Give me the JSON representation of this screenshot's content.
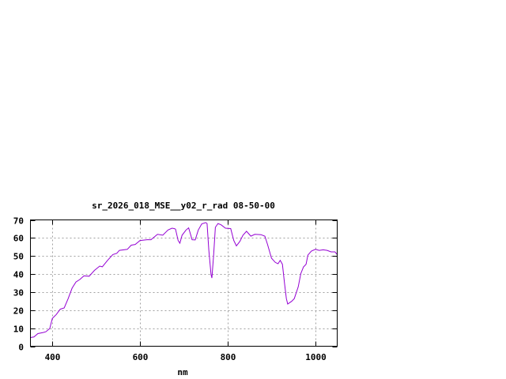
{
  "chart_data": {
    "type": "line",
    "title": "sr_2026_018_MSE__y02_r_rad 08-50-00",
    "xlabel": "nm",
    "ylabel": "",
    "xlim": [
      350,
      1050
    ],
    "ylim": [
      0,
      70
    ],
    "xticks": [
      400,
      600,
      800,
      1000
    ],
    "yticks": [
      0,
      10,
      20,
      30,
      40,
      50,
      60,
      70
    ],
    "grid": true,
    "line_color": "#9400d3",
    "series": [
      {
        "x": [
          350,
          358,
          367,
          379,
          385,
          394,
          400,
          409,
          418,
          427,
          436,
          445,
          454,
          463,
          472,
          484,
          496,
          508,
          514,
          526,
          538,
          547,
          553,
          571,
          580,
          589,
          600,
          616,
          625,
          634,
          640,
          652,
          664,
          673,
          678,
          681,
          687,
          691,
          696,
          705,
          711,
          719,
          726,
          733,
          741,
          750,
          753,
          757,
          762,
          764,
          768,
          772,
          778,
          785,
          795,
          807,
          814,
          820,
          828,
          835,
          843,
          853,
          862,
          876,
          885,
          891,
          900,
          909,
          915,
          920,
          925,
          930,
          934,
          937,
          946,
          952,
          961,
          967,
          973,
          979,
          983,
          991,
          1000,
          1009,
          1018,
          1027,
          1036,
          1045,
          1050
        ],
        "y": [
          4.8,
          5.1,
          7,
          7.6,
          8,
          9.8,
          15.4,
          17.6,
          20.5,
          21.2,
          26.4,
          32.2,
          35.6,
          37,
          39,
          38.8,
          42,
          44.4,
          44,
          47.6,
          50.8,
          51.5,
          53.1,
          53.7,
          56,
          56.4,
          58.6,
          59,
          59,
          60.8,
          62,
          61.5,
          64.4,
          65.4,
          65.2,
          64.9,
          58.6,
          57.1,
          61.5,
          64.4,
          65.6,
          59,
          58.9,
          64.4,
          67.8,
          68.5,
          68,
          53.4,
          39.8,
          37.8,
          50.5,
          65.9,
          68,
          67.3,
          65.4,
          65.2,
          58.6,
          55.6,
          58.1,
          61.5,
          63.7,
          61,
          62,
          61.8,
          61,
          56.4,
          48.8,
          46.4,
          45.7,
          47.6,
          45.4,
          34.4,
          26.4,
          23.4,
          24.9,
          26.4,
          32.9,
          40.3,
          43.9,
          45.4,
          50.5,
          52.7,
          53.7,
          53.1,
          53.4,
          53.1,
          52.3,
          52.3,
          50.8
        ]
      }
    ]
  }
}
